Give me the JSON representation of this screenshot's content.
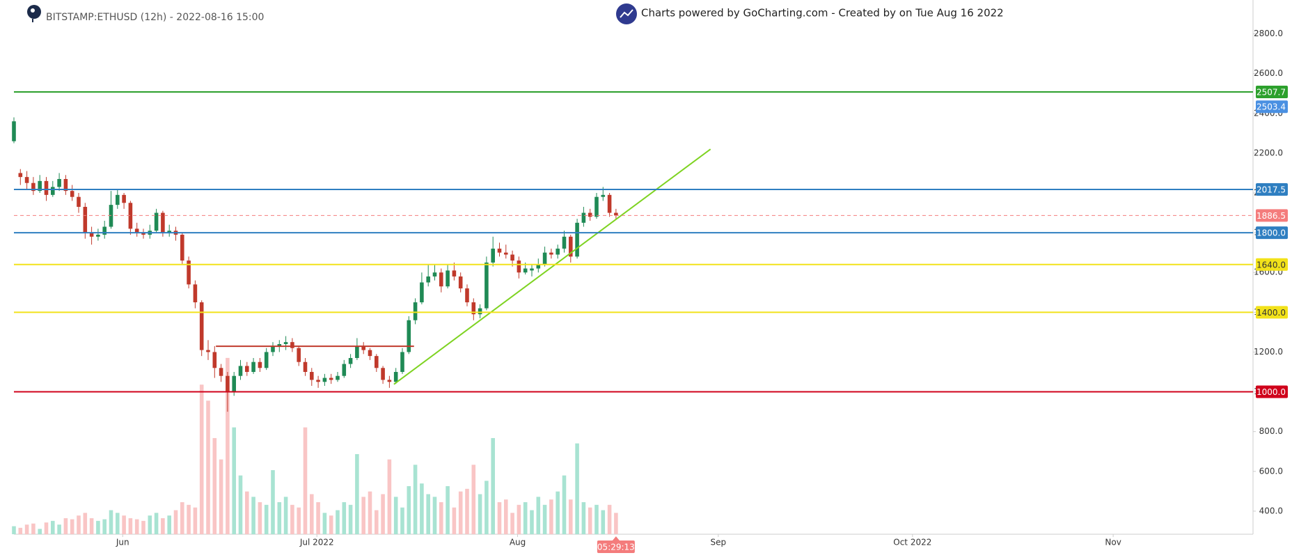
{
  "header": {
    "symbol": "BITSTAMP:ETHUSD (12h) - 2022-08-16 15:00",
    "credit": "Charts powered by GoCharting.com - Created by  on Tue Aug 16 2022"
  },
  "chart_data": {
    "type": "candlestick",
    "x": [
      0,
      1,
      2,
      3,
      4,
      5,
      6,
      7,
      8,
      9,
      10,
      11,
      12,
      13,
      14,
      15,
      16,
      17,
      18,
      19,
      20,
      21,
      22,
      23,
      24,
      25,
      26,
      27,
      28,
      29,
      30,
      31,
      32,
      33,
      34,
      35,
      36,
      37,
      38,
      39,
      40,
      41,
      42,
      43,
      44,
      45,
      46,
      47,
      48,
      49,
      50,
      51,
      52,
      53,
      54,
      55,
      56,
      57,
      58,
      59,
      60,
      61,
      62,
      63,
      64,
      65,
      66,
      67,
      68,
      69,
      70,
      71,
      72,
      73,
      74,
      75,
      76,
      77,
      78,
      79,
      80,
      81,
      82,
      83,
      84,
      85,
      86,
      87,
      88,
      89,
      90,
      91,
      92,
      93
    ],
    "ohlc": [
      [
        2260,
        2380,
        2250,
        2360
      ],
      [
        2100,
        2120,
        2040,
        2080
      ],
      [
        2080,
        2110,
        2020,
        2050
      ],
      [
        2050,
        2080,
        1990,
        2010
      ],
      [
        2010,
        2090,
        2000,
        2060
      ],
      [
        2060,
        2080,
        1960,
        1990
      ],
      [
        1990,
        2060,
        1980,
        2030
      ],
      [
        2030,
        2100,
        2010,
        2070
      ],
      [
        2070,
        2090,
        1990,
        2010
      ],
      [
        2010,
        2040,
        1960,
        1980
      ],
      [
        1980,
        2000,
        1900,
        1930
      ],
      [
        1930,
        1950,
        1770,
        1800
      ],
      [
        1800,
        1830,
        1740,
        1780
      ],
      [
        1780,
        1820,
        1760,
        1790
      ],
      [
        1790,
        1860,
        1770,
        1830
      ],
      [
        1830,
        2010,
        1820,
        1940
      ],
      [
        1940,
        2020,
        1920,
        1990
      ],
      [
        1990,
        2000,
        1920,
        1950
      ],
      [
        1950,
        1960,
        1790,
        1820
      ],
      [
        1820,
        1850,
        1780,
        1800
      ],
      [
        1800,
        1820,
        1770,
        1790
      ],
      [
        1790,
        1840,
        1770,
        1810
      ],
      [
        1810,
        1920,
        1800,
        1900
      ],
      [
        1900,
        1910,
        1780,
        1800
      ],
      [
        1800,
        1840,
        1780,
        1810
      ],
      [
        1810,
        1830,
        1760,
        1790
      ],
      [
        1790,
        1800,
        1640,
        1660
      ],
      [
        1660,
        1680,
        1520,
        1540
      ],
      [
        1540,
        1560,
        1420,
        1450
      ],
      [
        1450,
        1460,
        1180,
        1210
      ],
      [
        1210,
        1260,
        1160,
        1200
      ],
      [
        1200,
        1230,
        1070,
        1120
      ],
      [
        1120,
        1140,
        1050,
        1080
      ],
      [
        1080,
        1100,
        900,
        1000
      ],
      [
        1000,
        1100,
        980,
        1080
      ],
      [
        1080,
        1160,
        1060,
        1130
      ],
      [
        1130,
        1150,
        1080,
        1100
      ],
      [
        1100,
        1170,
        1090,
        1150
      ],
      [
        1150,
        1170,
        1100,
        1120
      ],
      [
        1120,
        1220,
        1110,
        1200
      ],
      [
        1200,
        1250,
        1180,
        1230
      ],
      [
        1230,
        1260,
        1200,
        1240
      ],
      [
        1240,
        1280,
        1210,
        1250
      ],
      [
        1250,
        1270,
        1200,
        1220
      ],
      [
        1220,
        1230,
        1130,
        1150
      ],
      [
        1150,
        1170,
        1080,
        1100
      ],
      [
        1100,
        1120,
        1030,
        1060
      ],
      [
        1060,
        1080,
        1020,
        1050
      ],
      [
        1050,
        1090,
        1030,
        1070
      ],
      [
        1070,
        1090,
        1040,
        1060
      ],
      [
        1060,
        1100,
        1050,
        1080
      ],
      [
        1080,
        1160,
        1070,
        1140
      ],
      [
        1140,
        1190,
        1120,
        1170
      ],
      [
        1170,
        1270,
        1160,
        1230
      ],
      [
        1230,
        1250,
        1190,
        1210
      ],
      [
        1210,
        1220,
        1160,
        1180
      ],
      [
        1180,
        1190,
        1100,
        1120
      ],
      [
        1120,
        1130,
        1040,
        1060
      ],
      [
        1060,
        1080,
        1020,
        1050
      ],
      [
        1050,
        1120,
        1040,
        1100
      ],
      [
        1100,
        1220,
        1090,
        1200
      ],
      [
        1200,
        1380,
        1190,
        1360
      ],
      [
        1360,
        1470,
        1340,
        1450
      ],
      [
        1450,
        1600,
        1440,
        1550
      ],
      [
        1550,
        1640,
        1530,
        1580
      ],
      [
        1580,
        1640,
        1560,
        1600
      ],
      [
        1600,
        1620,
        1500,
        1530
      ],
      [
        1530,
        1640,
        1520,
        1610
      ],
      [
        1610,
        1650,
        1560,
        1580
      ],
      [
        1580,
        1600,
        1500,
        1520
      ],
      [
        1520,
        1540,
        1430,
        1450
      ],
      [
        1450,
        1470,
        1360,
        1390
      ],
      [
        1390,
        1440,
        1370,
        1420
      ],
      [
        1420,
        1680,
        1410,
        1650
      ],
      [
        1650,
        1780,
        1630,
        1720
      ],
      [
        1720,
        1750,
        1680,
        1700
      ],
      [
        1700,
        1740,
        1670,
        1690
      ],
      [
        1690,
        1710,
        1630,
        1660
      ],
      [
        1660,
        1680,
        1570,
        1600
      ],
      [
        1600,
        1650,
        1590,
        1620
      ],
      [
        1610,
        1640,
        1580,
        1620
      ],
      [
        1620,
        1670,
        1600,
        1640
      ],
      [
        1640,
        1730,
        1630,
        1700
      ],
      [
        1700,
        1720,
        1670,
        1690
      ],
      [
        1690,
        1740,
        1670,
        1720
      ],
      [
        1720,
        1810,
        1700,
        1780
      ],
      [
        1780,
        1790,
        1650,
        1680
      ],
      [
        1680,
        1870,
        1670,
        1850
      ],
      [
        1850,
        1930,
        1830,
        1900
      ],
      [
        1900,
        1920,
        1860,
        1880
      ],
      [
        1880,
        2000,
        1870,
        1980
      ],
      [
        1980,
        2030,
        1960,
        1990
      ],
      [
        1990,
        2000,
        1880,
        1900
      ],
      [
        1900,
        1920,
        1870,
        1886.5
      ]
    ],
    "volume": [
      15,
      12,
      18,
      20,
      10,
      22,
      25,
      18,
      30,
      28,
      35,
      40,
      30,
      25,
      28,
      45,
      40,
      35,
      30,
      28,
      25,
      35,
      40,
      30,
      35,
      45,
      60,
      55,
      50,
      280,
      250,
      180,
      140,
      330,
      200,
      110,
      80,
      70,
      60,
      55,
      120,
      60,
      70,
      55,
      50,
      200,
      75,
      60,
      40,
      35,
      45,
      60,
      55,
      150,
      70,
      80,
      45,
      75,
      140,
      70,
      50,
      90,
      130,
      95,
      75,
      70,
      60,
      90,
      50,
      80,
      85,
      130,
      75,
      100,
      180,
      60,
      65,
      40,
      55,
      60,
      45,
      70,
      55,
      65,
      80,
      110,
      65,
      170,
      60,
      50,
      55,
      45,
      55,
      40
    ],
    "volume_lim": [
      0,
      1000
    ],
    "up_color": "#1f8a55",
    "down_color": "#c0392b",
    "up_volume_color": "#a8e3d2",
    "down_volume_color": "#f9c5c5",
    "xlim": [
      0,
      191.4
    ],
    "xticks": [
      {
        "value": 16.8,
        "label": "Jun"
      },
      {
        "value": 46.8,
        "label": "Jul 2022"
      },
      {
        "value": 77.8,
        "label": "Aug"
      },
      {
        "value": 108.8,
        "label": "Sep"
      },
      {
        "value": 138.8,
        "label": "Oct 2022"
      },
      {
        "value": 169.8,
        "label": "Nov"
      }
    ],
    "ylim": [
      284,
      2970
    ],
    "yticks": [
      {
        "value": 400,
        "label": "400.0"
      },
      {
        "value": 600,
        "label": "600.0"
      },
      {
        "value": 800,
        "label": "800.0"
      },
      {
        "value": 1000,
        "label": "1000.0"
      },
      {
        "value": 1200,
        "label": "1200.0"
      },
      {
        "value": 1400,
        "label": "1400.0"
      },
      {
        "value": 1600,
        "label": "1600.0"
      },
      {
        "value": 1800,
        "label": "1800.0"
      },
      {
        "value": 2000,
        "label": "2000.0"
      },
      {
        "value": 2200,
        "label": "2200.0"
      },
      {
        "value": 2400,
        "label": "2400.0"
      },
      {
        "value": 2600,
        "label": "2600.0"
      },
      {
        "value": 2800,
        "label": "2800.0"
      }
    ],
    "levels": [
      {
        "price": 2507.7,
        "color": "#2ca02c"
      },
      {
        "price": 2017.5,
        "color": "#2f7fc1"
      },
      {
        "price": 1886.5,
        "color": "#f47c7c",
        "dashed": true
      },
      {
        "price": {
          "value": 1800,
          "label": "1800.0"
        },
        "color": "#2f7fc1"
      },
      {
        "price": {
          "value": 1640,
          "label": "1640.0"
        },
        "color": "#f2e21a"
      },
      {
        "price": {
          "value": 1400,
          "label": "1400.0"
        },
        "color": "#f2e21a"
      },
      {
        "price": {
          "value": 1000,
          "label": "1000.0"
        },
        "color": "#d0021b"
      }
    ],
    "price_badges": [
      {
        "price": 2503.4,
        "color": "#4a90e2"
      }
    ],
    "trendlines": [
      {
        "x": [
          58.7,
          107.6
        ],
        "y": [
          1038,
          2220
        ],
        "color": "#7ed321"
      },
      {
        "x": [
          31.2,
          61.8
        ],
        "y": [
          1229,
          1229
        ],
        "color": "#c0392b"
      }
    ],
    "countdown": "05:29:13"
  }
}
